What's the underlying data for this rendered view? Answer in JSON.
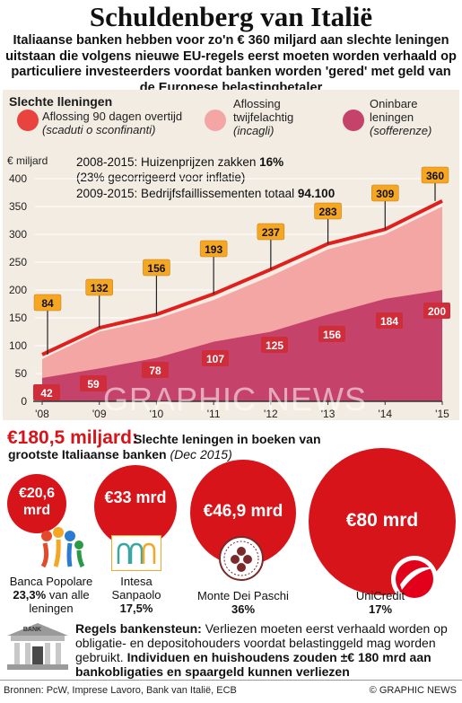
{
  "header": {
    "title": "Schuldenberg van Italië",
    "subtitle": "Italiaanse banken hebben voor zo'n € 360 miljard aan slechte leningen uitstaan die volgens nieuwe EU-regels eerst moeten worden verhaald op particuliere investeerders voordat banken worden 'gered' met geld van de Europese belastingbetaler"
  },
  "legend": {
    "heading": "Slechte lleningen",
    "items": [
      {
        "label": "Aflossing 90 dagen overtijd",
        "italian": "(scaduti o sconfinanti)",
        "color": "#e8433f"
      },
      {
        "label": "Aflossing twijfelachtig",
        "italian": "(incagli)",
        "color": "#f3a6a3"
      },
      {
        "label": "Oninbare leningen",
        "italian": "(sofferenze)",
        "color": "#c5426a"
      }
    ]
  },
  "chart_data": {
    "type": "area",
    "x": [
      "'08",
      "'09",
      "'10",
      "'11",
      "'12",
      "'13",
      "'14",
      "'15"
    ],
    "ylim": [
      0,
      400
    ],
    "yticks": [
      0,
      50,
      100,
      150,
      200,
      250,
      300,
      350,
      400
    ],
    "ylabel": "€ miljard",
    "series": [
      {
        "name": "Aflossing 90 dagen overtijd",
        "values": [
          84,
          132,
          156,
          193,
          237,
          283,
          309,
          360
        ]
      },
      {
        "name": "Aflossing twijfelachtig",
        "values": [
          76,
          125,
          148,
          182,
          225,
          273,
          300,
          350
        ]
      },
      {
        "name": "Oninbare leningen",
        "values": [
          42,
          59,
          78,
          107,
          125,
          156,
          184,
          200
        ]
      }
    ],
    "total_labels": [
      84,
      132,
      156,
      193,
      237,
      283,
      309,
      360
    ],
    "bad_labels": [
      42,
      59,
      78,
      107,
      125,
      156,
      184,
      200
    ],
    "annotations": [
      {
        "text": "2008-2015: Huizenprijzen zakken ",
        "bold": "16%"
      },
      {
        "text": "(23% gecorrigeerd voor inflatie)",
        "bold": ""
      },
      {
        "text": "2009-2015: Bedrijfsfaillissementen totaal ",
        "bold": "94.100"
      }
    ]
  },
  "highlight": {
    "amount": "€180,5 miljard:",
    "desc": "Slechte leningen in boeken van",
    "desc2": "grootste Italiaanse banken",
    "date": "(Dec 2015)"
  },
  "banks": [
    {
      "amount": "€20,6 mrd",
      "name": "Banca Popolare",
      "pct": "23,3%",
      "suffix": "van alle leningen"
    },
    {
      "amount": "€33 mrd",
      "name": "Intesa Sanpaolo",
      "pct": "17,5%",
      "suffix": ""
    },
    {
      "amount": "€46,9 mrd",
      "name": "Monte Dei Paschi",
      "pct": "36%",
      "suffix": ""
    },
    {
      "amount": "€80 mrd",
      "name": "UniCredit",
      "pct": "17%",
      "suffix": ""
    }
  ],
  "rules": {
    "bank_sign": "BANK",
    "title": "Regels bankensteun:",
    "body": "Verliezen moeten eerst verhaald worden op obligatie- en depositohouders voordat belastinggeld mag worden gebruikt.",
    "bold": "Individuen en huishoudens zouden ±€ 180 mrd aan bankobligaties en spaargeld kunnen verliezen"
  },
  "footer": {
    "sources": "Bronnen: PcW, Imprese Lavoro, Bank van Italië, ECB",
    "credit": "© GRAPHIC NEWS"
  },
  "watermark": "GRAPHIC NEWS",
  "colors": {
    "accent": "#d7141a",
    "panel": "#f3ece3",
    "label_orange": "#f5a623",
    "total_area": "#f3a6a3",
    "bad_area": "#c5426a",
    "line": "#e0201e"
  }
}
